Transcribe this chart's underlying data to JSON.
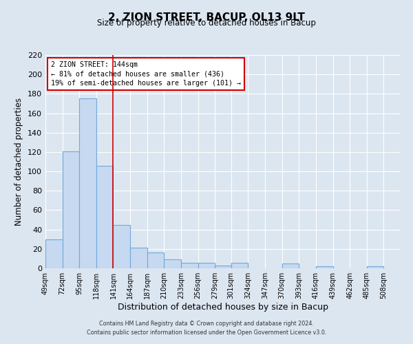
{
  "title": "2, ZION STREET, BACUP, OL13 9LT",
  "subtitle": "Size of property relative to detached houses in Bacup",
  "xlabel": "Distribution of detached houses by size in Bacup",
  "ylabel": "Number of detached properties",
  "bar_left_edges": [
    49,
    72,
    95,
    118,
    141,
    164,
    187,
    210,
    233,
    256,
    279,
    301,
    324,
    347,
    370,
    393,
    416,
    439,
    462,
    485
  ],
  "bar_heights": [
    30,
    121,
    175,
    106,
    45,
    21,
    16,
    9,
    6,
    6,
    3,
    6,
    0,
    0,
    5,
    0,
    2,
    0,
    0,
    2
  ],
  "bin_width": 23,
  "x_tick_labels": [
    "49sqm",
    "72sqm",
    "95sqm",
    "118sqm",
    "141sqm",
    "164sqm",
    "187sqm",
    "210sqm",
    "233sqm",
    "256sqm",
    "279sqm",
    "301sqm",
    "324sqm",
    "347sqm",
    "370sqm",
    "393sqm",
    "416sqm",
    "439sqm",
    "462sqm",
    "485sqm",
    "508sqm"
  ],
  "x_tick_positions": [
    49,
    72,
    95,
    118,
    141,
    164,
    187,
    210,
    233,
    256,
    279,
    301,
    324,
    347,
    370,
    393,
    416,
    439,
    462,
    485,
    508
  ],
  "ylim": [
    0,
    220
  ],
  "yticks": [
    0,
    20,
    40,
    60,
    80,
    100,
    120,
    140,
    160,
    180,
    200,
    220
  ],
  "bar_color": "#c6d9f0",
  "bar_edge_color": "#6fa8dc",
  "vline_x": 141,
  "vline_color": "#cc0000",
  "annotation_text": "2 ZION STREET: 144sqm\n← 81% of detached houses are smaller (436)\n19% of semi-detached houses are larger (101) →",
  "annotation_box_color": "#ffffff",
  "annotation_box_edge": "#cc0000",
  "bg_color": "#dce6f1",
  "footer_line1": "Contains HM Land Registry data © Crown copyright and database right 2024.",
  "footer_line2": "Contains public sector information licensed under the Open Government Licence v3.0."
}
